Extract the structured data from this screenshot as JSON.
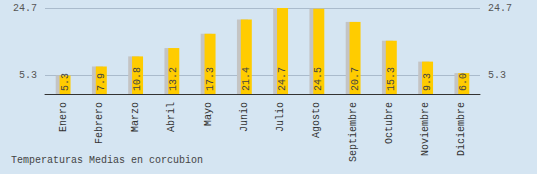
{
  "chart_data": {
    "type": "bar",
    "title": "Temperaturas Medias en corcubion",
    "categories": [
      "Enero",
      "Febrero",
      "Marzo",
      "Abril",
      "Mayo",
      "Junio",
      "Julio",
      "Agosto",
      "Septiembre",
      "Octubre",
      "Noviembre",
      "Diciembre"
    ],
    "values": [
      5.3,
      7.9,
      10.8,
      13.2,
      17.3,
      21.4,
      24.7,
      24.5,
      20.7,
      15.3,
      9.3,
      6.0
    ],
    "value_labels": [
      "5.3",
      "7.9",
      "10.8",
      "13.2",
      "17.3",
      "21.4",
      "24.7",
      "24.5",
      "20.7",
      "15.3",
      "9.3",
      "6.0"
    ],
    "color": "#ffcc00",
    "ylim": [
      0,
      24.7
    ],
    "yticks": [
      5.3,
      24.7
    ],
    "grid": true,
    "data_labels": true
  }
}
